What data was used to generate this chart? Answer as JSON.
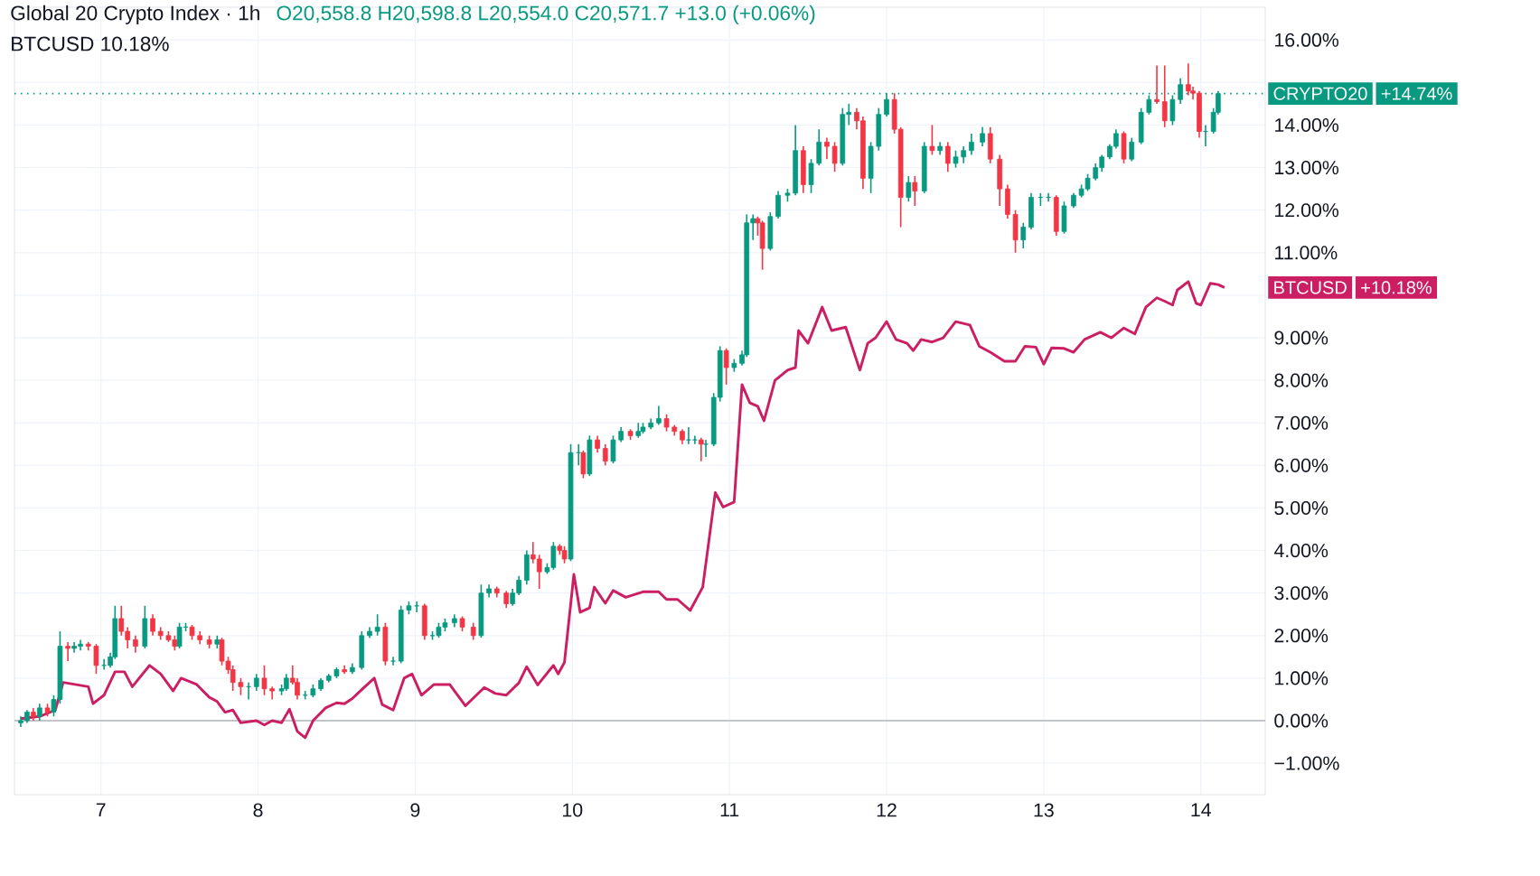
{
  "chart_data": {
    "type": "candlestick",
    "title": "Global 20 Crypto Index · 1h",
    "subtitle": "BTCUSD 10.18%",
    "annotations": [
      "O20,558.8 H20,598.8 L20,554.0 C20,571.7 +13.0 (+0.06%)",
      "+14.74%",
      "+10.18%"
    ],
    "xlim": [
      6.45,
      14.41
    ],
    "xticks": [
      7,
      8,
      9,
      10,
      11,
      12,
      13,
      14
    ],
    "ylim": [
      -1.74,
      16.77
    ],
    "yticks": [
      {
        "value": -1,
        "label": "−1.00%"
      },
      {
        "value": 0,
        "label": "0.00%"
      },
      {
        "value": 1,
        "label": "1.00%"
      },
      {
        "value": 2,
        "label": "2.00%"
      },
      {
        "value": 3,
        "label": "3.00%"
      },
      {
        "value": 4,
        "label": "4.00%"
      },
      {
        "value": 5,
        "label": "5.00%"
      },
      {
        "value": 6,
        "label": "6.00%"
      },
      {
        "value": 7,
        "label": "7.00%"
      },
      {
        "value": 8,
        "label": "8.00%"
      },
      {
        "value": 9,
        "label": "9.00%"
      },
      {
        "value": 10,
        "label": null
      },
      {
        "value": 11,
        "label": "11.00%"
      },
      {
        "value": 12,
        "label": "12.00%"
      },
      {
        "value": 13,
        "label": "13.00%"
      },
      {
        "value": 14,
        "label": "14.00%"
      },
      {
        "value": 15,
        "label": null
      },
      {
        "value": 16,
        "label": "16.00%"
      }
    ],
    "grid": true,
    "legend": "right",
    "ref_lines": [
      {
        "axis": "y",
        "value": 0,
        "color": "#b2b5be",
        "line_style": "solid"
      },
      {
        "axis": "y",
        "value": 14.74,
        "color": "#089981",
        "line_style": "dotted"
      }
    ],
    "series": [
      {
        "name": "CRYPTO20",
        "colors": [
          "#089981",
          "#089981",
          "#f23645",
          "#089981",
          "#f23645",
          "#089981",
          "#089981",
          "#f23645",
          "#089981",
          "#089981",
          "#f23645",
          "#f23645",
          "#089981",
          "#089981",
          "#089981",
          "#f23645",
          "#f23645",
          "#f23645",
          "#089981",
          "#f23645",
          "#f23645",
          "#f23645",
          "#f23645",
          "#089981",
          "#089981",
          "#f23645",
          "#f23645",
          "#f23645",
          "#089981",
          "#f23645",
          "#f23645",
          "#f23645",
          "#f23645",
          "#089981",
          "#089981",
          "#f23645",
          "#f23645",
          "#089981",
          "#089981",
          "#f23645",
          "#f23645",
          "#089981",
          "#089981",
          "#089981",
          "#089981",
          "#089981",
          "#f23645",
          "#089981",
          "#089981",
          "#089981",
          "#089981",
          "#f23645",
          "#089981",
          "#089981",
          "#089981",
          "#089981",
          "#f23645",
          "#089981",
          "#089981",
          "#089981",
          "#089981",
          "#f23645",
          "#f23645",
          "#089981",
          "#089981",
          "#f23645",
          "#f23645",
          "#089981",
          "#089981",
          "#089981",
          "#f23645",
          "#f23645",
          "#089981",
          "#089981",
          "#f23645",
          "#f23645",
          "#089981",
          "#089981",
          "#f23645",
          "#089981",
          "#f23645",
          "#f23645",
          "#089981",
          "#089981",
          "#f23645",
          "#089981",
          "#089981",
          "#089981",
          "#089981",
          "#f23645",
          "#f23645",
          "#f23645",
          "#089981",
          "#089981",
          "#f23645",
          "#089981",
          "#089981",
          "#089981",
          "#f23645",
          "#089981",
          "#089981",
          "#089981",
          "#089981",
          "#f23645",
          "#f23645",
          "#089981",
          "#089981",
          "#089981",
          "#089981",
          "#f23645",
          "#089981",
          "#089981",
          "#f23645",
          "#f23645",
          "#089981",
          "#089981",
          "#f23645",
          "#f23645",
          "#089981",
          "#089981",
          "#089981",
          "#f23645",
          "#f23645",
          "#089981",
          "#f23645",
          "#089981",
          "#f23645",
          "#089981",
          "#f23645",
          "#089981",
          "#089981",
          "#089981",
          "#089981",
          "#f23645",
          "#f23645",
          "#f23645",
          "#f23645",
          "#089981",
          "#089981",
          "#089981",
          "#089981",
          "#f23645",
          "#089981",
          "#089981",
          "#089981",
          "#089981",
          "#089981",
          "#089981",
          "#089981",
          "#089981",
          "#f23645",
          "#089981",
          "#089981",
          "#089981",
          "#f23645",
          "#f23645",
          "#089981",
          "#089981",
          "#f23645",
          "#f23645",
          "#f23645",
          "#089981",
          "#089981",
          "#089981"
        ],
        "x": [
          6.49,
          6.53,
          6.57,
          6.61,
          6.66,
          6.7,
          6.74,
          6.79,
          6.83,
          6.87,
          6.92,
          6.97,
          7.02,
          7.06,
          7.09,
          7.13,
          7.17,
          7.22,
          7.28,
          7.33,
          7.38,
          7.43,
          7.47,
          7.5,
          7.54,
          7.58,
          7.63,
          7.69,
          7.74,
          7.77,
          7.81,
          7.84,
          7.89,
          7.94,
          7.99,
          8.04,
          8.09,
          8.15,
          8.18,
          8.22,
          8.25,
          8.3,
          8.35,
          8.4,
          8.45,
          8.5,
          8.55,
          8.6,
          8.66,
          8.71,
          8.76,
          8.81,
          8.86,
          8.91,
          8.96,
          9.01,
          9.06,
          9.11,
          9.15,
          9.19,
          9.25,
          9.3,
          9.37,
          9.42,
          9.47,
          9.52,
          9.58,
          9.62,
          9.66,
          9.71,
          9.75,
          9.79,
          9.84,
          9.88,
          9.92,
          9.95,
          9.99,
          10.04,
          10.07,
          10.11,
          10.16,
          10.21,
          10.26,
          10.31,
          10.37,
          10.42,
          10.45,
          10.5,
          10.55,
          10.6,
          10.65,
          10.7,
          10.74,
          10.78,
          10.82,
          10.85,
          10.9,
          10.94,
          10.98,
          11.03,
          11.08,
          11.11,
          11.15,
          11.18,
          11.21,
          11.26,
          11.31,
          11.37,
          11.42,
          11.47,
          11.52,
          11.57,
          11.62,
          11.67,
          11.72,
          11.76,
          11.81,
          11.85,
          11.9,
          11.95,
          12.0,
          12.05,
          12.09,
          12.14,
          12.18,
          12.24,
          12.29,
          12.34,
          12.39,
          12.44,
          12.49,
          12.54,
          12.61,
          12.66,
          12.72,
          12.77,
          12.82,
          12.87,
          12.92,
          12.98,
          13.03,
          13.08,
          13.13,
          13.19,
          13.24,
          13.28,
          13.33,
          13.37,
          13.42,
          13.46,
          13.51,
          13.56,
          13.62,
          13.67,
          13.72,
          13.77,
          13.82,
          13.87,
          13.92,
          13.95,
          13.99,
          14.03,
          14.08,
          14.11
        ],
        "ohlc": [
          [
            -0.05,
            0.1,
            -0.15,
            0
          ],
          [
            0,
            0.25,
            -0.05,
            0.2
          ],
          [
            0.2,
            0.3,
            0.0,
            0.1
          ],
          [
            0.1,
            0.4,
            0.0,
            0.3
          ],
          [
            0.3,
            0.4,
            0.1,
            0.2
          ],
          [
            0.2,
            0.6,
            0.1,
            0.5
          ],
          [
            0.5,
            2.1,
            0.4,
            1.75
          ],
          [
            1.75,
            1.85,
            1.4,
            1.7
          ],
          [
            1.7,
            1.85,
            1.6,
            1.75
          ],
          [
            1.75,
            1.9,
            1.65,
            1.8
          ],
          [
            1.8,
            1.85,
            1.65,
            1.75
          ],
          [
            1.75,
            1.8,
            1.1,
            1.3
          ],
          [
            1.3,
            1.45,
            1.2,
            1.3
          ],
          [
            1.3,
            1.6,
            1.25,
            1.5
          ],
          [
            1.5,
            2.7,
            1.45,
            2.4
          ],
          [
            2.4,
            2.7,
            2.0,
            2.1
          ],
          [
            2.1,
            2.2,
            1.7,
            1.9
          ],
          [
            1.9,
            2.0,
            1.6,
            1.75
          ],
          [
            1.75,
            2.7,
            1.7,
            2.4
          ],
          [
            2.4,
            2.5,
            2.0,
            2.1
          ],
          [
            2.1,
            2.2,
            1.9,
            2.0
          ],
          [
            2.0,
            2.1,
            1.85,
            1.9
          ],
          [
            1.9,
            2.0,
            1.65,
            1.75
          ],
          [
            1.75,
            2.3,
            1.7,
            2.2
          ],
          [
            2.2,
            2.3,
            2.1,
            2.2
          ],
          [
            2.2,
            2.25,
            1.9,
            2.0
          ],
          [
            2.0,
            2.1,
            1.8,
            1.9
          ],
          [
            1.9,
            2.0,
            1.7,
            1.8
          ],
          [
            1.8,
            2.0,
            1.7,
            1.9
          ],
          [
            1.9,
            1.95,
            1.3,
            1.4
          ],
          [
            1.4,
            1.5,
            1.1,
            1.2
          ],
          [
            1.2,
            1.3,
            0.7,
            0.9
          ],
          [
            0.9,
            1.0,
            0.6,
            0.8
          ],
          [
            0.8,
            0.9,
            0.5,
            0.8
          ],
          [
            0.8,
            1.1,
            0.7,
            1.0
          ],
          [
            1.0,
            1.3,
            0.6,
            0.75
          ],
          [
            0.75,
            0.8,
            0.5,
            0.7
          ],
          [
            0.7,
            0.85,
            0.6,
            0.75
          ],
          [
            0.75,
            1.1,
            0.7,
            1.0
          ],
          [
            1.0,
            1.3,
            0.85,
            0.9
          ],
          [
            0.9,
            1.0,
            0.5,
            0.6
          ],
          [
            0.6,
            0.7,
            0.5,
            0.6
          ],
          [
            0.6,
            0.85,
            0.55,
            0.75
          ],
          [
            0.75,
            1.0,
            0.7,
            0.95
          ],
          [
            0.95,
            1.1,
            0.9,
            1.05
          ],
          [
            1.05,
            1.25,
            1.0,
            1.2
          ],
          [
            1.2,
            1.3,
            1.1,
            1.15
          ],
          [
            1.15,
            1.35,
            1.1,
            1.25
          ],
          [
            1.25,
            2.1,
            1.2,
            2.0
          ],
          [
            2.0,
            2.2,
            1.95,
            2.1
          ],
          [
            2.1,
            2.5,
            2.0,
            2.2
          ],
          [
            2.2,
            2.3,
            1.3,
            1.4
          ],
          [
            1.4,
            1.5,
            1.3,
            1.4
          ],
          [
            1.4,
            2.7,
            1.35,
            2.6
          ],
          [
            2.6,
            2.8,
            2.5,
            2.7
          ],
          [
            2.7,
            2.8,
            2.55,
            2.7
          ],
          [
            2.7,
            2.75,
            1.9,
            2.0
          ],
          [
            2.0,
            2.1,
            1.9,
            2.0
          ],
          [
            2.0,
            2.3,
            1.95,
            2.2
          ],
          [
            2.2,
            2.4,
            2.1,
            2.3
          ],
          [
            2.3,
            2.5,
            2.2,
            2.4
          ],
          [
            2.4,
            2.45,
            2.1,
            2.2
          ],
          [
            2.2,
            2.3,
            1.9,
            2.0
          ],
          [
            2.0,
            3.2,
            1.95,
            3.0
          ],
          [
            3.0,
            3.2,
            2.9,
            3.1
          ],
          [
            3.1,
            3.15,
            2.9,
            3.0
          ],
          [
            3.0,
            3.05,
            2.65,
            2.75
          ],
          [
            2.75,
            3.1,
            2.7,
            3.0
          ],
          [
            3.0,
            3.4,
            2.95,
            3.3
          ],
          [
            3.3,
            4.0,
            3.2,
            3.9
          ],
          [
            3.9,
            4.2,
            3.7,
            3.8
          ],
          [
            3.8,
            3.9,
            3.1,
            3.5
          ],
          [
            3.5,
            3.7,
            3.45,
            3.6
          ],
          [
            3.6,
            4.2,
            3.55,
            4.1
          ],
          [
            4.1,
            4.15,
            3.9,
            4.0
          ],
          [
            4.0,
            4.1,
            3.7,
            3.8
          ],
          [
            3.8,
            6.5,
            3.75,
            6.3
          ],
          [
            6.3,
            6.5,
            6.0,
            6.3
          ],
          [
            6.3,
            6.35,
            5.7,
            5.8
          ],
          [
            5.8,
            6.7,
            5.75,
            6.6
          ],
          [
            6.6,
            6.7,
            6.3,
            6.4
          ],
          [
            6.4,
            6.5,
            6.0,
            6.1
          ],
          [
            6.1,
            6.7,
            6.05,
            6.6
          ],
          [
            6.6,
            6.9,
            6.55,
            6.8
          ],
          [
            6.8,
            6.85,
            6.6,
            6.7
          ],
          [
            6.7,
            7.0,
            6.65,
            6.8
          ],
          [
            6.8,
            7.0,
            6.75,
            6.9
          ],
          [
            6.9,
            7.1,
            6.85,
            7.0
          ],
          [
            7.0,
            7.4,
            6.95,
            7.1
          ],
          [
            7.1,
            7.2,
            6.8,
            6.9
          ],
          [
            6.9,
            6.95,
            6.7,
            6.8
          ],
          [
            6.8,
            6.85,
            6.5,
            6.6
          ],
          [
            6.6,
            6.9,
            6.5,
            6.6
          ],
          [
            6.6,
            6.7,
            6.5,
            6.6
          ],
          [
            6.6,
            6.65,
            6.1,
            6.5
          ],
          [
            6.5,
            6.6,
            6.2,
            6.5
          ],
          [
            6.5,
            7.7,
            6.45,
            7.6
          ],
          [
            7.6,
            8.8,
            7.5,
            8.7
          ],
          [
            8.7,
            8.75,
            7.9,
            8.3
          ],
          [
            8.3,
            8.5,
            8.2,
            8.4
          ],
          [
            8.4,
            8.7,
            8.35,
            8.6
          ],
          [
            8.6,
            11.9,
            8.55,
            11.7
          ],
          [
            11.7,
            11.9,
            11.3,
            11.8
          ],
          [
            11.8,
            11.85,
            11.4,
            11.7
          ],
          [
            11.7,
            11.75,
            10.6,
            11.1
          ],
          [
            11.1,
            11.95,
            11.05,
            11.85
          ],
          [
            11.85,
            12.45,
            11.8,
            12.35
          ],
          [
            12.35,
            12.5,
            12.2,
            12.4
          ],
          [
            12.4,
            14.0,
            12.35,
            13.4
          ],
          [
            13.4,
            13.5,
            12.4,
            12.6
          ],
          [
            12.6,
            13.2,
            12.4,
            13.1
          ],
          [
            13.1,
            13.9,
            13.05,
            13.6
          ],
          [
            13.6,
            13.7,
            13.2,
            13.5
          ],
          [
            13.5,
            13.6,
            12.9,
            13.1
          ],
          [
            13.1,
            14.4,
            13.05,
            14.25
          ],
          [
            14.25,
            14.5,
            14.0,
            14.3
          ],
          [
            14.3,
            14.4,
            13.9,
            14.1
          ],
          [
            14.1,
            14.2,
            12.5,
            12.75
          ],
          [
            12.75,
            13.6,
            12.4,
            13.5
          ],
          [
            13.5,
            14.4,
            13.4,
            14.25
          ],
          [
            14.25,
            14.75,
            14.2,
            14.6
          ],
          [
            14.6,
            14.75,
            13.8,
            13.9
          ],
          [
            13.9,
            13.95,
            11.6,
            12.3
          ],
          [
            12.3,
            12.8,
            12.2,
            12.65
          ],
          [
            12.65,
            12.8,
            12.1,
            12.45
          ],
          [
            12.45,
            13.6,
            12.4,
            13.5
          ],
          [
            13.5,
            14.0,
            13.3,
            13.4
          ],
          [
            13.4,
            13.6,
            13.3,
            13.5
          ],
          [
            13.5,
            13.6,
            12.9,
            13.1
          ],
          [
            13.1,
            13.4,
            13.0,
            13.25
          ],
          [
            13.25,
            13.5,
            13.1,
            13.4
          ],
          [
            13.4,
            13.8,
            13.3,
            13.6
          ],
          [
            13.6,
            13.95,
            13.5,
            13.8
          ],
          [
            13.8,
            13.95,
            13.1,
            13.2
          ],
          [
            13.2,
            13.3,
            12.1,
            12.5
          ],
          [
            12.5,
            12.6,
            11.8,
            11.9
          ],
          [
            11.9,
            12.0,
            11.0,
            11.3
          ],
          [
            11.3,
            11.7,
            11.1,
            11.6
          ],
          [
            11.6,
            12.4,
            11.55,
            12.3
          ],
          [
            12.3,
            12.4,
            12.1,
            12.3
          ],
          [
            12.3,
            12.4,
            12.2,
            12.3
          ],
          [
            12.3,
            12.35,
            11.4,
            11.5
          ],
          [
            11.5,
            12.2,
            11.45,
            12.1
          ],
          [
            12.1,
            12.4,
            12.05,
            12.35
          ],
          [
            12.35,
            12.6,
            12.3,
            12.5
          ],
          [
            12.5,
            12.85,
            12.45,
            12.75
          ],
          [
            12.75,
            13.1,
            12.7,
            13.0
          ],
          [
            13.0,
            13.3,
            12.9,
            13.25
          ],
          [
            13.25,
            13.55,
            13.2,
            13.5
          ],
          [
            13.5,
            13.9,
            13.45,
            13.8
          ],
          [
            13.8,
            13.85,
            13.1,
            13.2
          ],
          [
            13.2,
            13.7,
            13.15,
            13.6
          ],
          [
            13.6,
            14.4,
            13.55,
            14.3
          ],
          [
            14.3,
            14.7,
            14.25,
            14.6
          ],
          [
            14.6,
            15.4,
            14.5,
            14.55
          ],
          [
            14.55,
            15.4,
            13.95,
            14.1
          ],
          [
            14.1,
            14.7,
            14.0,
            14.6
          ],
          [
            14.6,
            15.1,
            14.5,
            14.95
          ],
          [
            14.95,
            15.45,
            14.7,
            14.8
          ],
          [
            14.8,
            14.9,
            14.6,
            14.75
          ],
          [
            14.75,
            14.8,
            13.7,
            13.85
          ],
          [
            13.85,
            14.0,
            13.5,
            13.85
          ],
          [
            13.85,
            14.4,
            13.8,
            14.3
          ],
          [
            14.3,
            14.8,
            14.25,
            14.74
          ]
        ]
      },
      {
        "type": "line",
        "name": "BTCUSD",
        "color": "#cc1f63",
        "x": [
          6.49,
          6.61,
          6.71,
          6.76,
          6.92,
          6.95,
          7.02,
          7.09,
          7.15,
          7.2,
          7.31,
          7.38,
          7.46,
          7.51,
          7.61,
          7.69,
          7.74,
          7.79,
          7.84,
          7.89,
          7.99,
          8.04,
          8.09,
          8.15,
          8.2,
          8.25,
          8.3,
          8.35,
          8.43,
          8.5,
          8.55,
          8.6,
          8.66,
          8.74,
          8.79,
          8.86,
          8.93,
          8.98,
          9.04,
          9.12,
          9.22,
          9.32,
          9.44,
          9.51,
          9.58,
          9.66,
          9.71,
          9.78,
          9.88,
          9.91,
          9.95,
          10.01,
          10.05,
          10.11,
          10.14,
          10.21,
          10.26,
          10.34,
          10.45,
          10.55,
          10.6,
          10.67,
          10.75,
          10.83,
          10.91,
          10.96,
          11.03,
          11.08,
          11.13,
          11.18,
          11.22,
          11.29,
          11.37,
          11.42,
          11.44,
          11.5,
          11.59,
          11.65,
          11.74,
          11.83,
          11.88,
          11.93,
          12.0,
          12.06,
          12.13,
          12.17,
          12.22,
          12.29,
          12.36,
          12.44,
          12.53,
          12.59,
          12.66,
          12.75,
          12.82,
          12.88,
          12.95,
          13.0,
          13.05,
          13.13,
          13.19,
          13.26,
          13.36,
          13.43,
          13.51,
          13.58,
          13.65,
          13.72,
          13.77,
          13.82,
          13.85,
          13.92,
          13.97,
          14.0,
          14.06,
          14.11,
          14.15
        ],
        "values": [
          0.05,
          0.1,
          0.25,
          0.9,
          0.8,
          0.4,
          0.6,
          1.15,
          1.15,
          0.8,
          1.3,
          1.1,
          0.7,
          1.0,
          0.85,
          0.55,
          0.45,
          0.2,
          0.25,
          -0.05,
          0.0,
          -0.1,
          0.0,
          -0.05,
          0.27,
          -0.25,
          -0.4,
          0.0,
          0.3,
          0.42,
          0.4,
          0.52,
          0.73,
          1.0,
          0.38,
          0.25,
          1.0,
          1.1,
          0.6,
          0.85,
          0.85,
          0.35,
          0.78,
          0.64,
          0.6,
          0.89,
          1.27,
          0.84,
          1.3,
          1.1,
          1.37,
          3.44,
          2.55,
          2.65,
          3.14,
          2.76,
          3.06,
          2.9,
          3.03,
          3.03,
          2.85,
          2.85,
          2.59,
          3.14,
          5.36,
          5.02,
          5.14,
          7.9,
          7.47,
          7.39,
          7.05,
          8.0,
          8.24,
          8.3,
          9.17,
          8.87,
          9.72,
          9.17,
          9.25,
          8.24,
          8.87,
          9.0,
          9.38,
          8.96,
          8.87,
          8.7,
          8.96,
          8.9,
          9.0,
          9.38,
          9.3,
          8.8,
          8.66,
          8.45,
          8.45,
          8.8,
          8.78,
          8.38,
          8.76,
          8.75,
          8.66,
          8.96,
          9.13,
          9.0,
          9.23,
          9.09,
          9.72,
          9.94,
          9.86,
          9.77,
          10.12,
          10.32,
          9.81,
          9.77,
          10.28,
          10.25,
          10.18
        ]
      }
    ]
  }
}
